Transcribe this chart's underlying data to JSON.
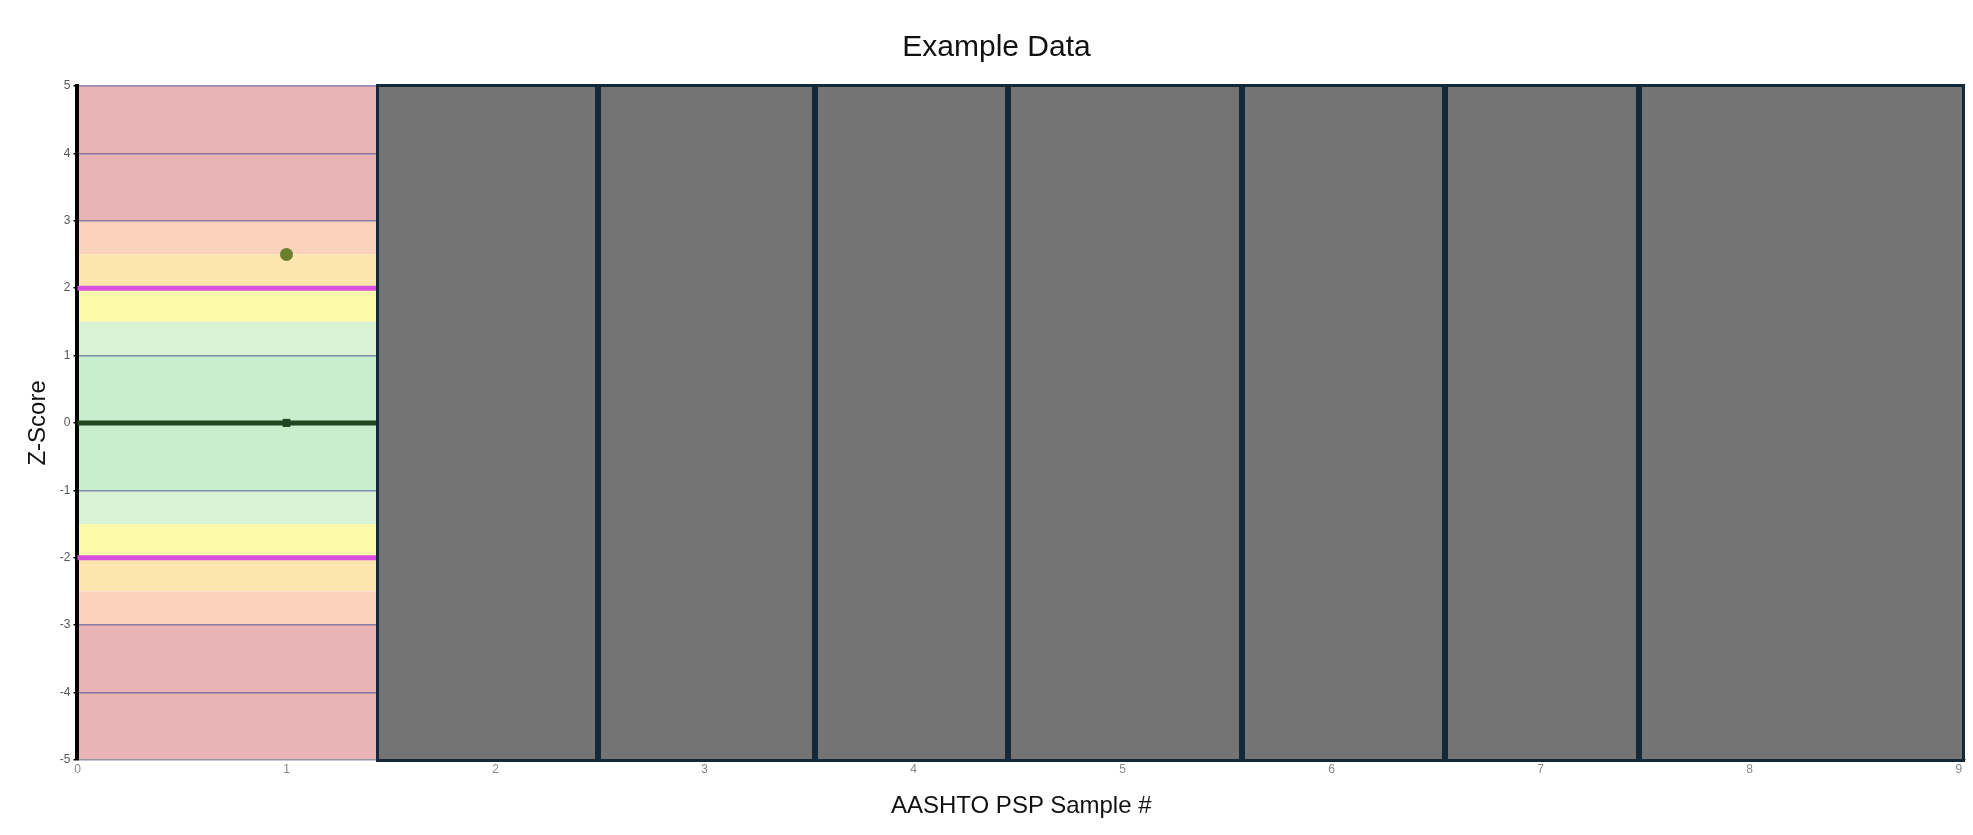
{
  "chart_data": {
    "type": "scatter",
    "title": "Example Data",
    "xlabel": "AASHTO PSP Sample #",
    "ylabel": "Z-Score",
    "xlim": [
      0,
      9.03
    ],
    "xticks": [
      0,
      1,
      2,
      3,
      4,
      5,
      6,
      7,
      8,
      9
    ],
    "ylim": [
      -5,
      5
    ],
    "yticks": [
      -5,
      -4,
      -3,
      -2,
      -1,
      0,
      1,
      2,
      3,
      4,
      5
    ],
    "grid": "y",
    "legend": false,
    "series": [
      {
        "type": "line",
        "x": [
          1
        ],
        "values": [
          2.5
        ],
        "color": "#6b7f2e",
        "marker": "circle"
      },
      {
        "x": [
          1
        ],
        "values": [
          0
        ],
        "color": "#1e4620",
        "marker": "square"
      }
    ],
    "bands": [
      {
        "axis": "y",
        "from": 3,
        "to": 5,
        "color": "#e8b4b6"
      },
      {
        "axis": "y",
        "from": 2.5,
        "to": 3,
        "color": "#fbd3bd"
      },
      {
        "axis": "y",
        "from": 2,
        "to": 2.5,
        "color": "#fde6ae"
      },
      {
        "axis": "y",
        "from": 1.5,
        "to": 2,
        "color": "#fdfaac"
      },
      {
        "axis": "y",
        "from": 1,
        "to": 1.5,
        "color": "#d9f2d6"
      },
      {
        "axis": "y",
        "from": -1,
        "to": 1,
        "color": "#c7efcd"
      },
      {
        "axis": "y",
        "from": -1.5,
        "to": -1,
        "color": "#d9f2d6"
      },
      {
        "axis": "y",
        "from": -2,
        "to": -1.5,
        "color": "#fdfaac"
      },
      {
        "axis": "y",
        "from": -2.5,
        "to": -2,
        "color": "#fde6ae"
      },
      {
        "axis": "y",
        "from": -3,
        "to": -2.5,
        "color": "#fbd3bd"
      },
      {
        "axis": "y",
        "from": -5,
        "to": -3,
        "color": "#e8b4b6"
      }
    ],
    "ref_lines": [
      {
        "axis": "y",
        "value": 2,
        "color": "#d94fe0"
      },
      {
        "axis": "y",
        "value": -2,
        "color": "#d94fe0"
      },
      {
        "axis": "y",
        "value": 0,
        "color": "#1e4620"
      }
    ]
  }
}
